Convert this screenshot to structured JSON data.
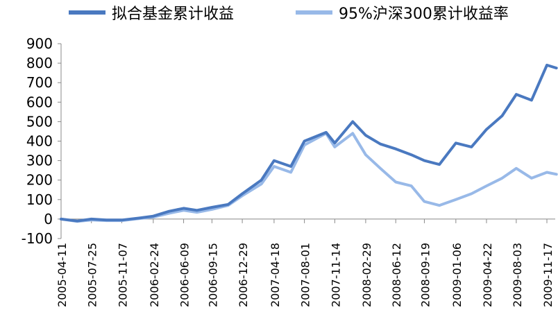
{
  "chart_data": {
    "type": "line",
    "title": "",
    "xlabel": "",
    "ylabel": "",
    "ylim": [
      -100,
      900
    ],
    "yticks": [
      -100,
      0,
      100,
      200,
      300,
      400,
      500,
      600,
      700,
      800,
      900
    ],
    "grid": false,
    "legend_position": "top",
    "x_tick_labels": [
      "2005-04-11",
      "2005-07-25",
      "2005-11-07",
      "2006-02-24",
      "2006-06-09",
      "2006-09-15",
      "2006-12-29",
      "2007-04-18",
      "2007-08-01",
      "2007-11-14",
      "2008-02-29",
      "2008-06-12",
      "2008-09-19",
      "2009-01-06",
      "2009-04-22",
      "2009-08-03",
      "2009-11-17"
    ],
    "x": [
      "2005-04-11",
      "2005-06-06",
      "2005-07-25",
      "2005-09-15",
      "2005-11-07",
      "2006-01-05",
      "2006-02-24",
      "2006-04-20",
      "2006-06-09",
      "2006-07-25",
      "2006-09-15",
      "2006-11-10",
      "2006-12-29",
      "2007-03-05",
      "2007-04-18",
      "2007-06-15",
      "2007-08-01",
      "2007-10-15",
      "2007-11-14",
      "2008-01-15",
      "2008-02-29",
      "2008-04-20",
      "2008-06-12",
      "2008-08-05",
      "2008-09-19",
      "2008-11-10",
      "2009-01-06",
      "2009-03-01",
      "2009-04-22",
      "2009-06-15",
      "2009-08-03",
      "2009-09-25",
      "2009-11-17",
      "2009-12-20"
    ],
    "series": [
      {
        "name": "拟合基金累计收益",
        "color": "#4a79c0",
        "values": [
          0,
          -10,
          0,
          -5,
          -5,
          5,
          15,
          40,
          55,
          45,
          60,
          75,
          130,
          200,
          300,
          270,
          400,
          445,
          390,
          500,
          430,
          385,
          360,
          330,
          300,
          280,
          390,
          370,
          460,
          530,
          640,
          610,
          790,
          775
        ]
      },
      {
        "name": "95%沪深300累计收益率",
        "color": "#98b9e8",
        "values": [
          0,
          -12,
          -5,
          -8,
          -8,
          2,
          10,
          30,
          45,
          35,
          50,
          70,
          120,
          180,
          270,
          240,
          380,
          440,
          370,
          440,
          330,
          260,
          190,
          170,
          90,
          70,
          100,
          130,
          170,
          210,
          260,
          210,
          240,
          230
        ]
      }
    ]
  }
}
